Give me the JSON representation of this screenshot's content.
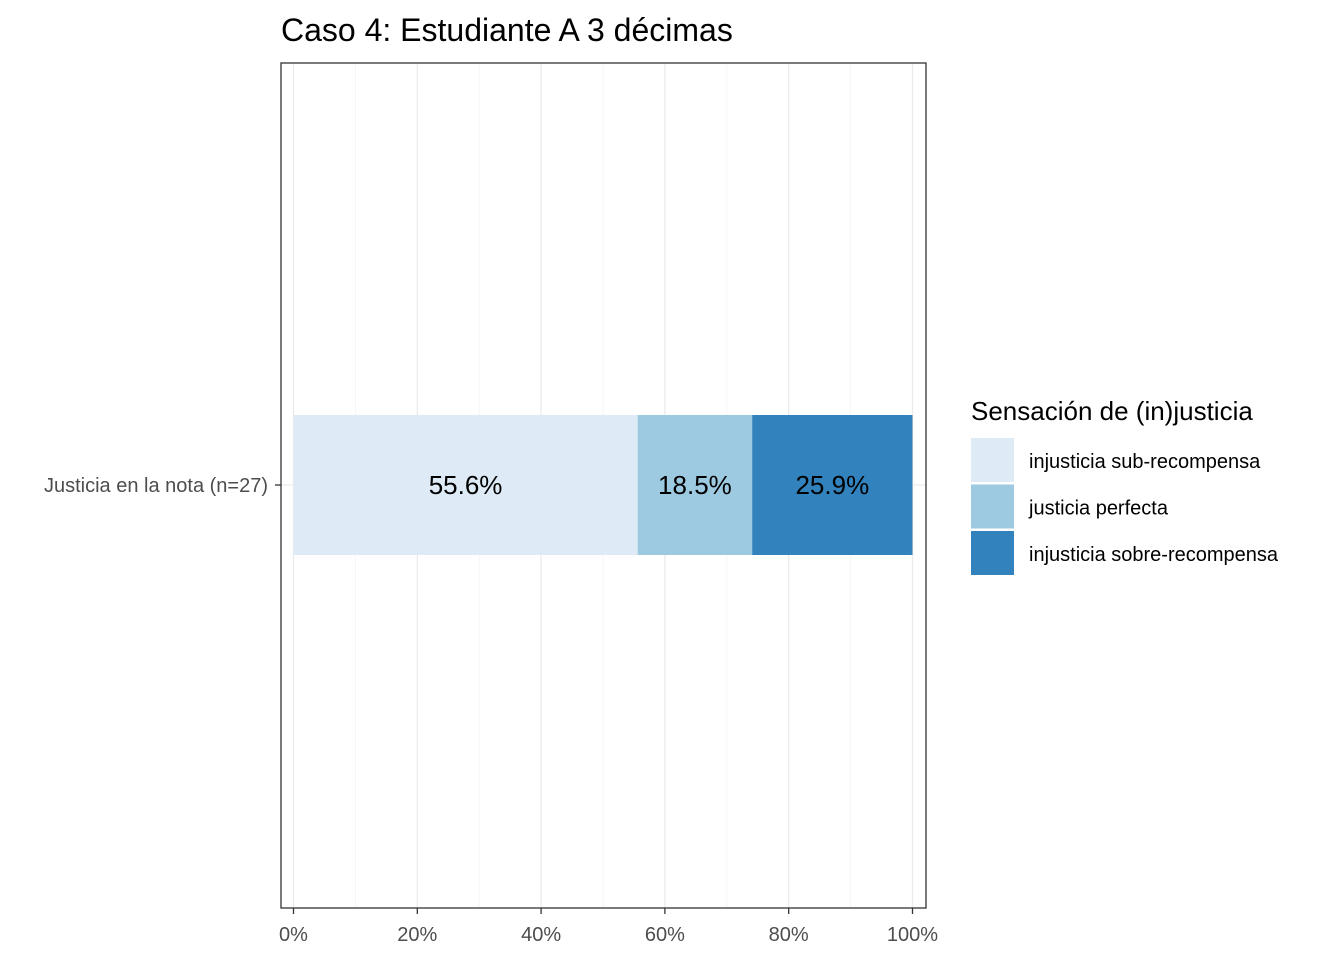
{
  "chart_data": {
    "type": "bar",
    "orientation": "horizontal",
    "stacked": true,
    "title": "Caso 4: Estudiante A 3 décimas",
    "categories": [
      "Justicia en la nota (n=27)"
    ],
    "series": [
      {
        "name": "injusticia sub-recompensa",
        "values": [
          55.6
        ],
        "label": "55.6%",
        "color": "#deebf7"
      },
      {
        "name": "justicia perfecta",
        "values": [
          18.5
        ],
        "label": "18.5%",
        "color": "#9ecae1"
      },
      {
        "name": "injusticia sobre-recompensa",
        "values": [
          25.9
        ],
        "label": "25.9%",
        "color": "#3182bd"
      }
    ],
    "xlim": [
      0,
      100
    ],
    "xticks": [
      0,
      20,
      40,
      60,
      80,
      100
    ],
    "xtick_labels": [
      "0%",
      "20%",
      "40%",
      "60%",
      "80%",
      "100%"
    ],
    "xlabel": "",
    "ylabel": "",
    "grid": true,
    "legend": {
      "title": "Sensación de (in)justicia",
      "position": "right",
      "entries": [
        "injusticia sub-recompensa",
        "justicia perfecta",
        "injusticia sobre-recompensa"
      ]
    }
  }
}
